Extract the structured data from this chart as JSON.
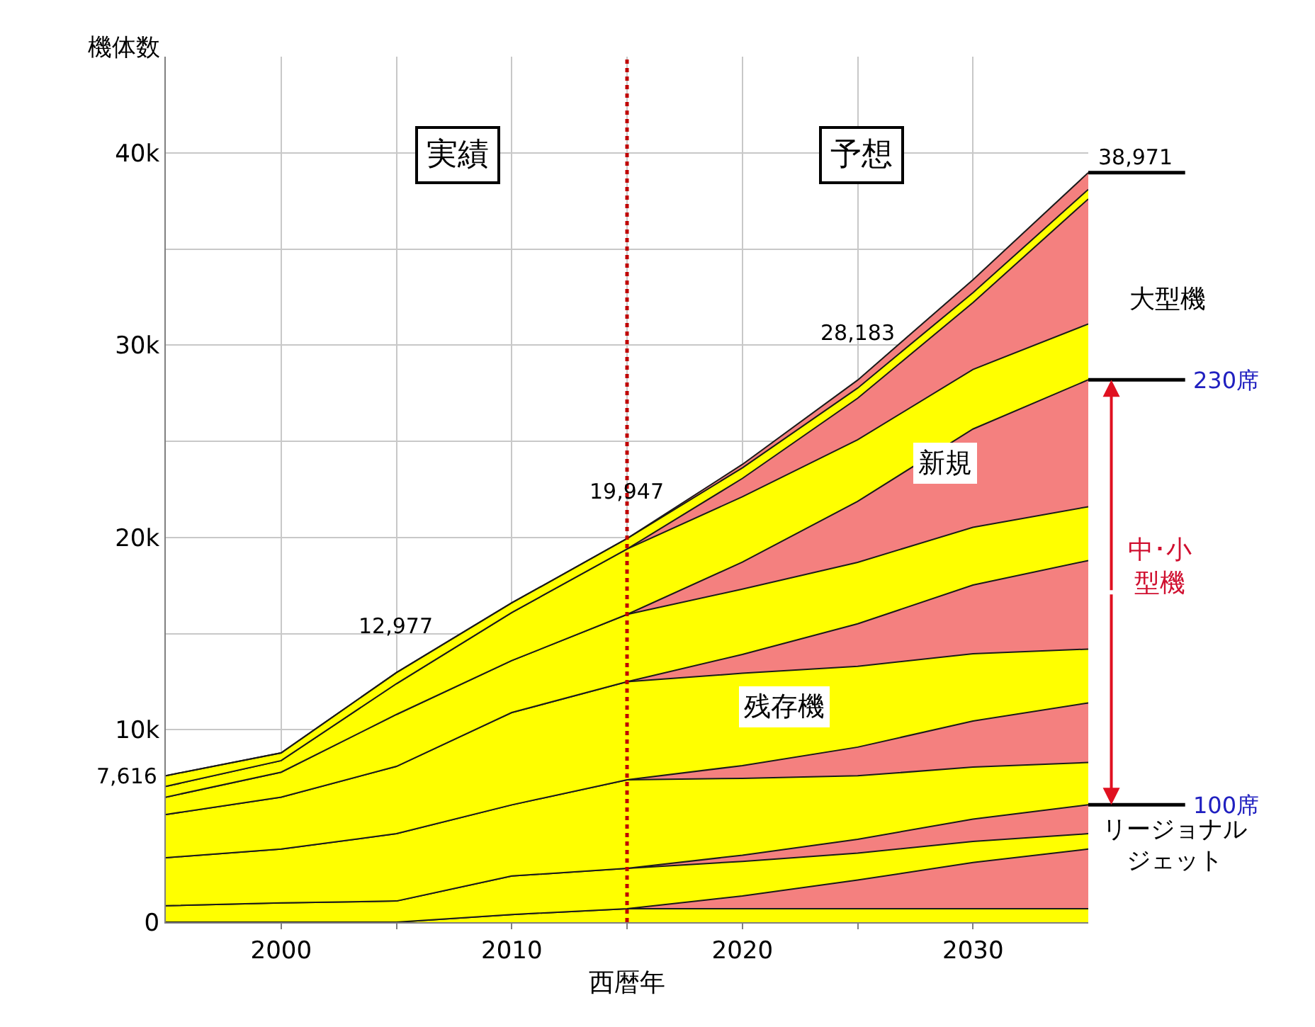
{
  "chart_data": {
    "type": "area",
    "stacked": true,
    "xlabel": "西暦年",
    "ylabel": "機体数",
    "x": [
      1995,
      2000,
      2005,
      2010,
      2015,
      2020,
      2025,
      2030,
      2035
    ],
    "xlim": [
      1995,
      2035
    ],
    "xticks": [
      2000,
      {
        "value": 2005,
        "label": null
      },
      2010,
      {
        "value": 2015,
        "label": null
      },
      2020,
      {
        "value": 2025,
        "label": null
      },
      2030
    ],
    "ylim": [
      0,
      45000
    ],
    "yticks": [
      {
        "value": 0,
        "label": "0"
      },
      {
        "value": 10000,
        "label": "10k"
      },
      {
        "value": 15000,
        "label": null
      },
      {
        "value": 20000,
        "label": "20k"
      },
      {
        "value": 25000,
        "label": null
      },
      {
        "value": 30000,
        "label": "30k"
      },
      {
        "value": 35000,
        "label": null
      },
      {
        "value": 40000,
        "label": "40k"
      }
    ],
    "grid": true,
    "series": [
      {
        "color": "#ffff00",
        "values": [
          0,
          0,
          0,
          400,
          700,
          700,
          700,
          700,
          700
        ]
      },
      {
        "color": "#f4807f",
        "values": [
          0,
          0,
          0,
          0,
          0,
          660,
          1490,
          2400,
          3100
        ]
      },
      {
        "color": "#ffff00",
        "values": [
          860,
          1000,
          1100,
          2000,
          2100,
          1800,
          1400,
          1100,
          800
        ]
      },
      {
        "color": "#f4807f",
        "values": [
          0,
          0,
          0,
          0,
          0,
          320,
          720,
          1160,
          1500
        ]
      },
      {
        "color": "#ffff00",
        "values": [
          2490,
          2800,
          3500,
          3700,
          4600,
          4000,
          3300,
          2700,
          2200
        ]
      },
      {
        "color": "#f4807f",
        "values": [
          0,
          0,
          0,
          0,
          0,
          660,
          1490,
          2400,
          3100
        ]
      },
      {
        "color": "#ffff00",
        "values": [
          2250,
          2700,
          3500,
          4800,
          5100,
          4800,
          4200,
          3500,
          2800
        ]
      },
      {
        "color": "#f4807f",
        "values": [
          0,
          0,
          0,
          0,
          0,
          980,
          2210,
          3570,
          4600
        ]
      },
      {
        "color": "#ffff00",
        "values": [
          900,
          1300,
          2700,
          2700,
          3500,
          3400,
          3200,
          3000,
          2800
        ]
      },
      {
        "color": "#f4807f",
        "values": [
          0,
          0,
          0,
          0,
          0,
          1400,
          3170,
          5110,
          6600
        ]
      },
      {
        "color": "#ffff00",
        "values": [
          560,
          600,
          1600,
          2500,
          3400,
          3400,
          3200,
          3100,
          2900
        ]
      },
      {
        "color": "#f4807f",
        "values": [
          0,
          0,
          0,
          0,
          0,
          950,
          2160,
          3470,
          6500
        ]
      },
      {
        "color": "#ffff00",
        "values": [
          556,
          400,
          577,
          500,
          547,
          550,
          530,
          520,
          500
        ]
      },
      {
        "color": "#f4807f",
        "values": [
          0,
          0,
          0,
          0,
          0,
          180,
          413,
          670,
          871
        ]
      }
    ],
    "ref_lines": [
      {
        "axis": "x",
        "value": 2015,
        "color": "#c00000",
        "line_style": "dotted"
      }
    ],
    "annotations": [
      {
        "text": "7,616",
        "x": 1995,
        "y": 7616
      },
      {
        "text": "12,977",
        "x": 2005,
        "y": 12977
      },
      {
        "text": "19,947",
        "x": 2015,
        "y": 19947
      },
      {
        "text": "28,183",
        "x": 2025,
        "y": 28183
      },
      {
        "text": "38,971",
        "x": 2035,
        "y": 38971
      },
      {
        "text": "230席",
        "x": 2035,
        "y": 28200
      },
      {
        "text": "100席",
        "x": 2035,
        "y": 6100
      },
      "実績",
      "予想",
      "残存機",
      "新規",
      "大型機",
      "中･小型機",
      "リージョナルジェット"
    ]
  }
}
